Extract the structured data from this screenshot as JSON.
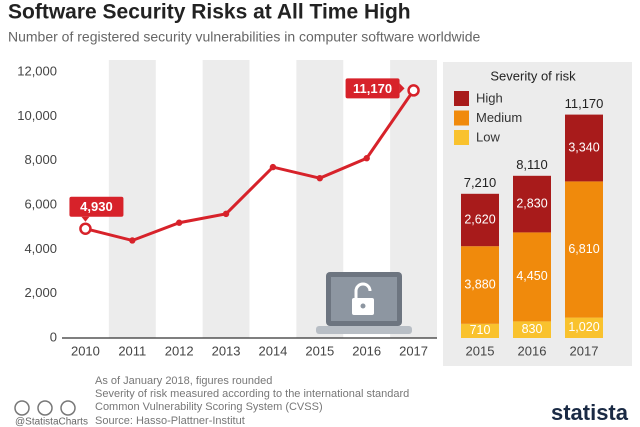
{
  "title": "Software Security Risks at All Time High",
  "subtitle": "Number of registered security vulnerabilities in computer software worldwide",
  "notes": [
    "As of January 2018, figures rounded",
    "Severity of risk measured according to the international standard",
    "Common Vulnerability Scoring System (CVSS)",
    "Source: Hasso-Plattner-Institut"
  ],
  "handle": "@StatistaCharts",
  "brand": "statista",
  "chart_data": [
    {
      "type": "line",
      "categories": [
        "2010",
        "2011",
        "2012",
        "2013",
        "2014",
        "2015",
        "2016",
        "2017"
      ],
      "values": [
        4930,
        4400,
        5200,
        5600,
        7710,
        7210,
        8110,
        11170
      ],
      "value_labels": [
        "4,930",
        null,
        null,
        null,
        null,
        null,
        null,
        "11,170"
      ],
      "color": "#d7222a",
      "ylim": [
        0,
        12000
      ],
      "yticks": [
        0,
        {
          "value": 2000,
          "label": "2,000"
        },
        {
          "value": 4000,
          "label": "4,000"
        },
        {
          "value": 6000,
          "label": "6,000"
        },
        {
          "value": 8000,
          "label": "8,000"
        },
        {
          "value": 10000,
          "label": "10,000"
        },
        {
          "value": 12000,
          "label": "12,000"
        }
      ]
    },
    {
      "type": "stacked-bar",
      "legend_title": "Severity of risk",
      "categories": [
        "2015",
        "2016",
        "2017"
      ],
      "series": [
        {
          "name": "Low",
          "color": "#f9c22e",
          "values": [
            710,
            830,
            1020
          ],
          "value_labels": [
            "710",
            "830",
            "1,020"
          ]
        },
        {
          "name": "Medium",
          "color": "#f08a0c",
          "values": [
            3880,
            4450,
            6810
          ],
          "value_labels": [
            "3,880",
            "4,450",
            "6,810"
          ]
        },
        {
          "name": "High",
          "color": "#a81b1b",
          "values": [
            2620,
            2830,
            3340
          ],
          "value_labels": [
            "2,620",
            "2,830",
            "3,340"
          ]
        }
      ],
      "totals": [
        7210,
        8110,
        11170
      ],
      "total_labels": [
        "7,210",
        "8,110",
        "11,170"
      ]
    }
  ]
}
